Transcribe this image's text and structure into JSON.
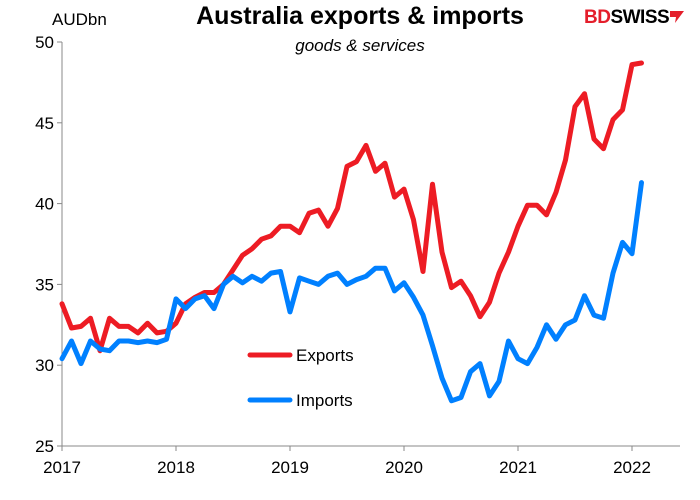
{
  "chart_data": {
    "type": "line",
    "title": "Australia exports & imports",
    "subtitle": "goods & services",
    "ylabel": "AUDbn",
    "ylim": [
      25,
      50
    ],
    "yticks": [
      "25",
      "30",
      "35",
      "40",
      "45",
      "50"
    ],
    "xticks": [
      "2017",
      "2018",
      "2019",
      "2020",
      "2021",
      "2022"
    ],
    "x_start": "2017-01",
    "x_frequency": "monthly",
    "grid": false,
    "legend_placement": "center-bottom",
    "series": [
      {
        "name": "Exports",
        "color": "#ed1c24",
        "values": [
          33.8,
          32.3,
          32.4,
          32.9,
          30.9,
          32.9,
          32.4,
          32.4,
          32.0,
          32.6,
          32.0,
          32.1,
          32.6,
          33.8,
          34.2,
          34.5,
          34.5,
          35.0,
          35.9,
          36.8,
          37.2,
          37.8,
          38.0,
          38.6,
          38.6,
          38.2,
          39.4,
          39.6,
          38.6,
          39.7,
          42.3,
          42.6,
          43.6,
          42.0,
          42.5,
          40.4,
          40.9,
          39.0,
          35.8,
          41.2,
          37.0,
          34.8,
          35.2,
          34.3,
          33.0,
          33.9,
          35.7,
          37.0,
          38.6,
          39.9,
          39.9,
          39.3,
          40.7,
          42.7,
          46.0,
          46.8,
          44.0,
          43.4,
          45.2,
          45.8,
          48.6,
          48.7
        ]
      },
      {
        "name": "Imports",
        "color": "#0080ff",
        "values": [
          30.4,
          31.5,
          30.1,
          31.5,
          31.0,
          30.9,
          31.5,
          31.5,
          31.4,
          31.5,
          31.4,
          31.6,
          34.1,
          33.5,
          34.1,
          34.3,
          33.5,
          35.0,
          35.5,
          35.1,
          35.5,
          35.2,
          35.7,
          35.8,
          33.3,
          35.4,
          35.2,
          35.0,
          35.5,
          35.7,
          35.0,
          35.3,
          35.5,
          36.0,
          36.0,
          34.6,
          35.1,
          34.2,
          33.1,
          31.2,
          29.2,
          27.8,
          28.0,
          29.6,
          30.1,
          28.1,
          29.0,
          31.5,
          30.4,
          30.1,
          31.1,
          32.5,
          31.6,
          32.5,
          32.8,
          34.3,
          33.1,
          32.9,
          35.7,
          37.6,
          36.9,
          41.3
        ]
      }
    ]
  },
  "logo": {
    "text_a": "BD",
    "text_b": "SWISS"
  }
}
